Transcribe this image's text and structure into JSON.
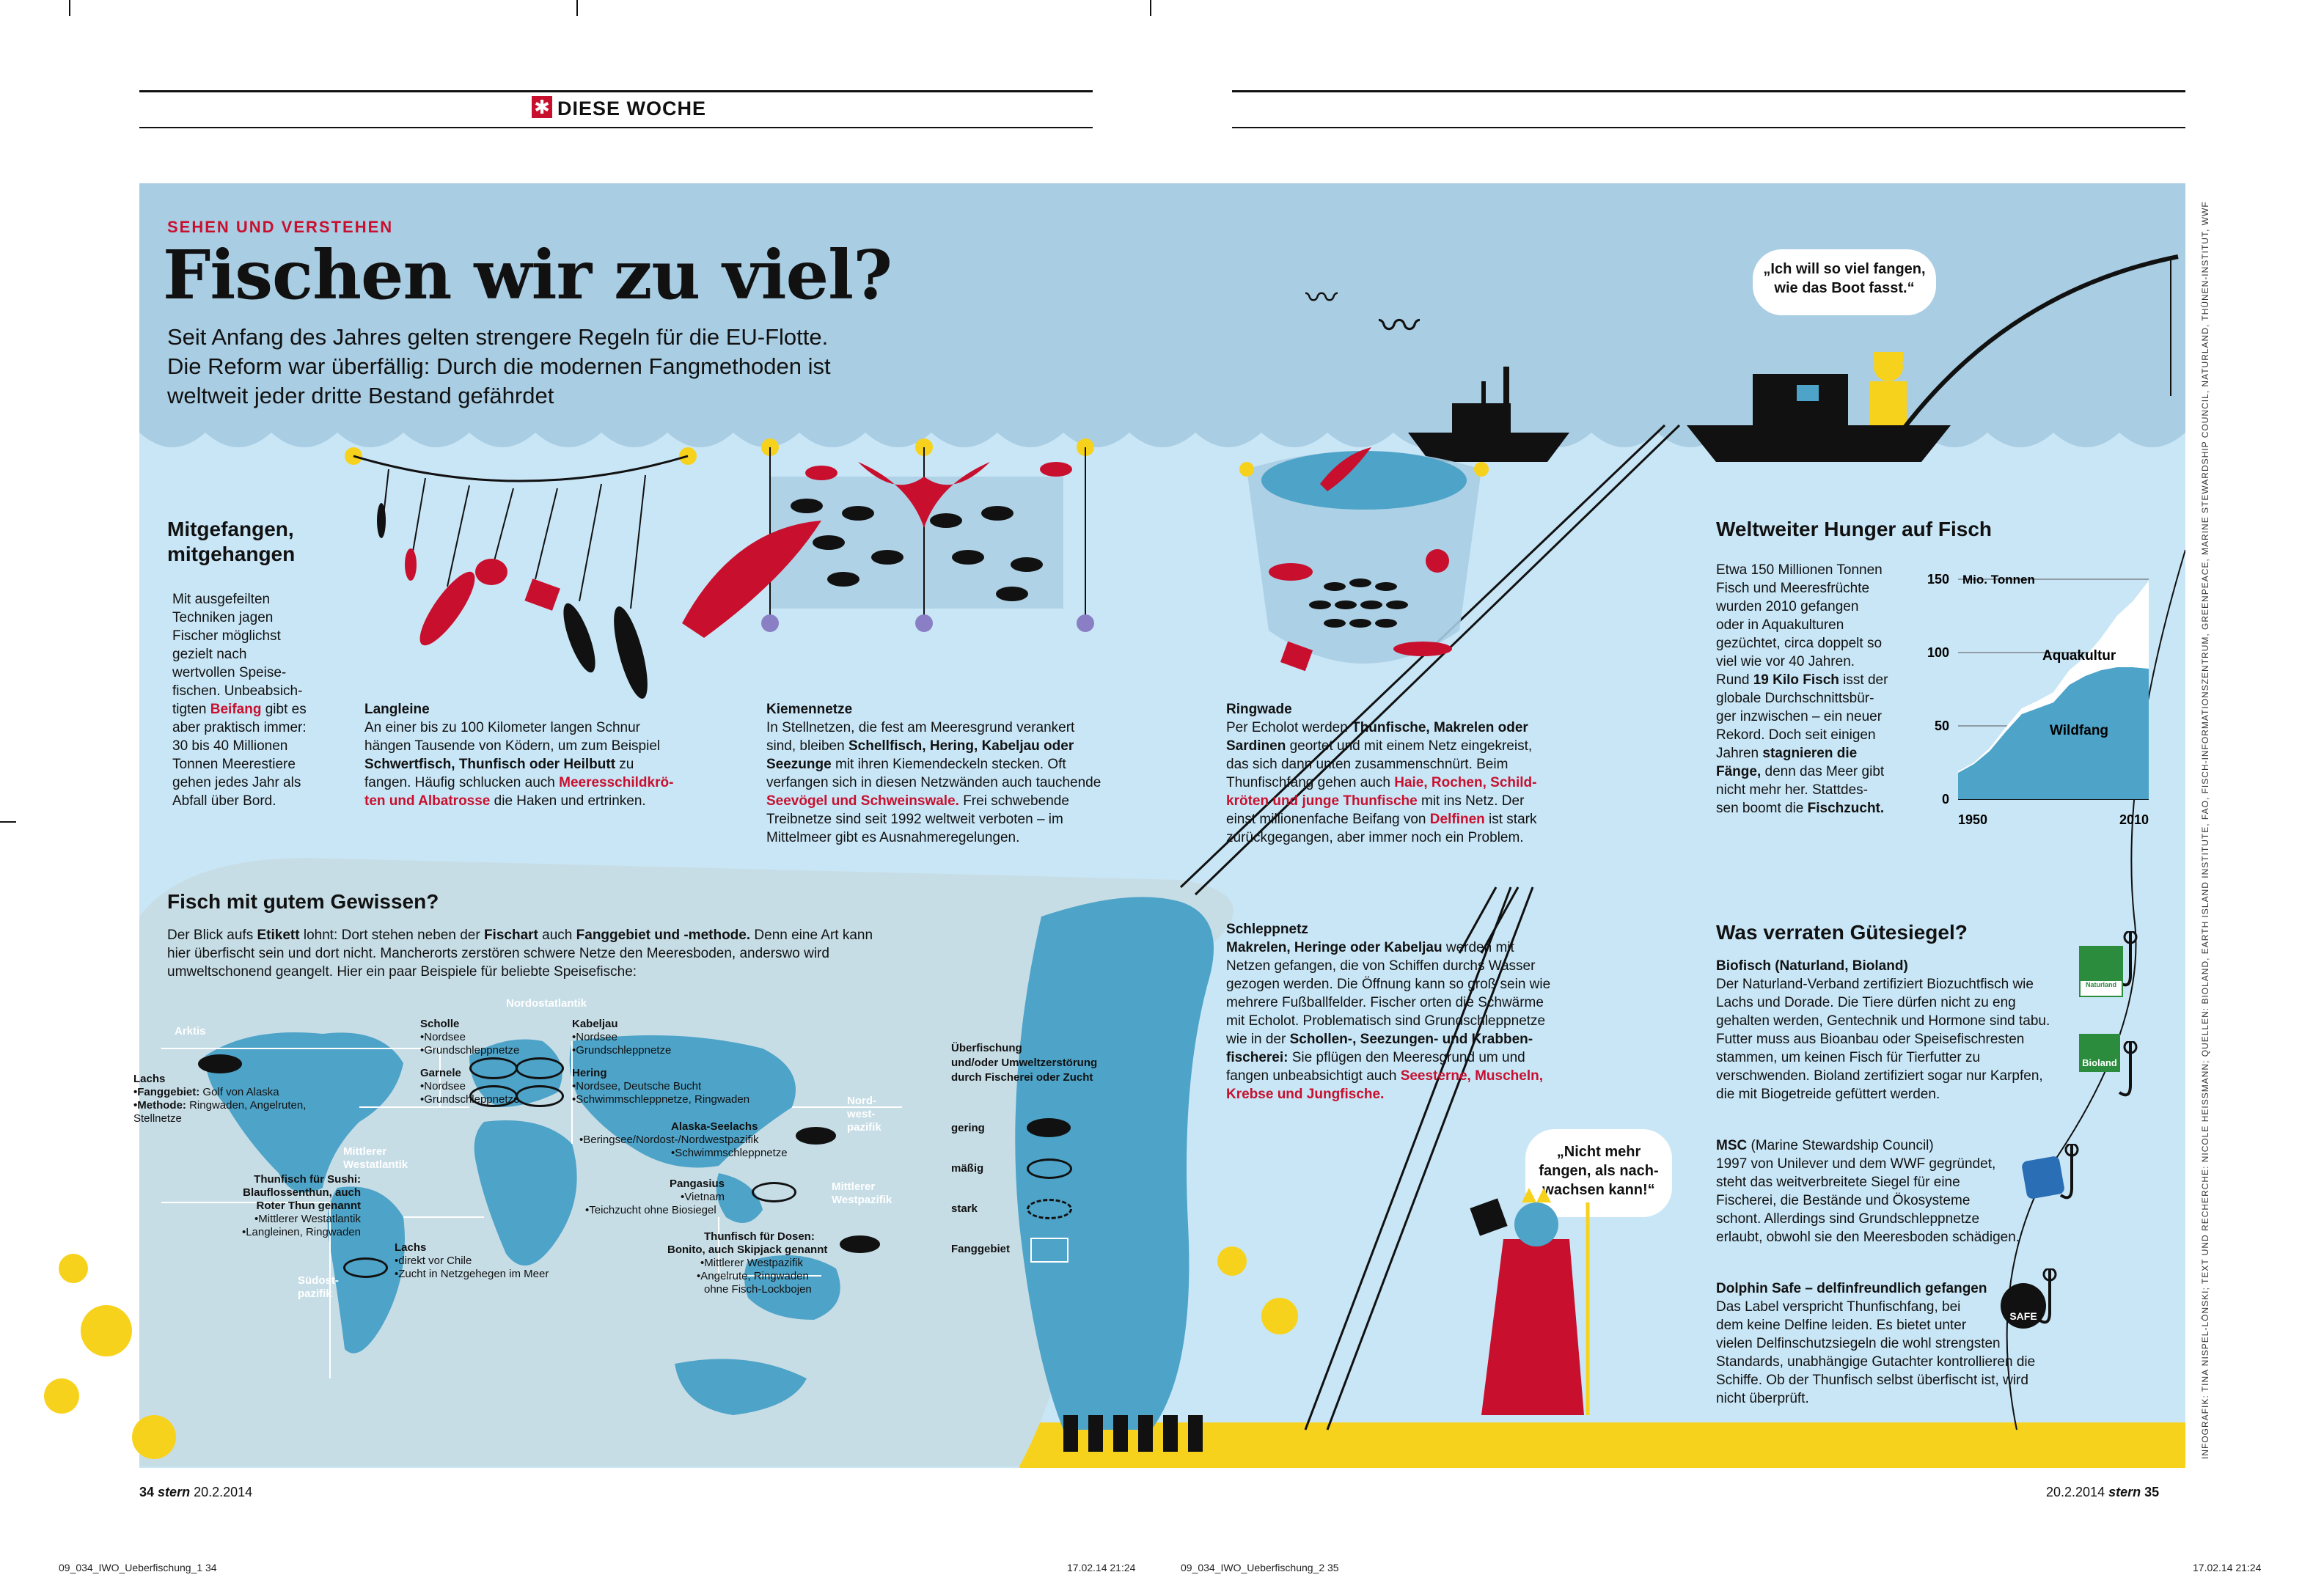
{
  "header": {
    "section": "DIESE WOCHE"
  },
  "kicker": "SEHEN UND VERSTEHEN",
  "title": "Fischen wir zu viel?",
  "intro": [
    "Seit Anfang des Jahres gelten strengere Regeln für die EU-Flotte.",
    "Die Reform war überfällig: Durch die modernen Fangmethoden ist",
    "weltweit jeder dritte Bestand gefährdet"
  ],
  "bubbles": {
    "fisherman": [
      "„Ich will so viel fangen,",
      "wie das Boot fasst.“"
    ],
    "neptune": [
      "„Nicht mehr",
      "fangen, als nach-",
      "wachsen kann!“"
    ]
  },
  "bycatch": {
    "title": [
      "Mitgefangen,",
      "mitgehangen"
    ],
    "text_plain": [
      "Mit ausgefeilten",
      "Techniken jagen",
      "Fischer möglichst",
      "gezielt nach",
      "wertvollen Speise-",
      "fischen. Unbeabsich-"
    ],
    "line_tigten": "tigten ",
    "beifang": "Beifang",
    "line_tigten_rest": " gibt es",
    "text_plain2": [
      "aber praktisch immer:",
      "30 bis 40 Millionen",
      "Tonnen Meerestiere",
      "gehen jedes Jahr als",
      "Abfall über Bord."
    ]
  },
  "langleine": {
    "heading": "Langleine",
    "l1": "An einer bis zu 100 Kilometer langen Schnur",
    "l2": "hängen Tausende von Ködern, um zum Beispiel",
    "l3b": "Schwertfisch, Thunfisch oder Heilbutt",
    "l3": " zu",
    "l4": "fangen. Häufig schlucken auch ",
    "l4r": "Meeresschildkrö-",
    "l5r": "ten und Albatrosse",
    "l5": " die Haken und ertrinken."
  },
  "kiemen": {
    "heading": "Kiemennetze",
    "l1": "In Stellnetzen, die fest am Meeresgrund verankert",
    "l2": "sind, bleiben ",
    "l2b": "Schellfisch, Hering, Kabeljau oder",
    "l3b": "Seezunge",
    "l3": " mit ihren Kiemendeckeln stecken. Oft",
    "l4": "verfangen sich in diesen Netzwänden auch tauchende",
    "l5r": "Seevögel und Schweinswale.",
    "l5": " Frei schwebende",
    "l6": "Treibnetze sind seit 1992 weltweit verboten – im",
    "l7": "Mittelmeer gibt es Ausnahmeregelungen."
  },
  "ringwade": {
    "heading": "Ringwade",
    "l1": "Per Echolot werden ",
    "l1b": "Thunfische, Makrelen oder",
    "l2b": "Sardinen",
    "l2": " geortet und mit einem Netz eingekreist,",
    "l3": "das sich dann unten zusammenschnürt. Beim",
    "l4": "Thunfischfang gehen auch ",
    "l4r": "Haie, Rochen, Schild-",
    "l5r": "kröten und junge Thunfische",
    "l5": " mit ins Netz. Der",
    "l6": "einst millionenfache Beifang von ",
    "l6r": "Delfinen",
    "l6e": " ist stark",
    "l7": "zurückgegangen, aber immer noch ein Problem."
  },
  "schlepp": {
    "heading": "Schleppnetz",
    "l1b": "Makrelen, Heringe oder Kabeljau",
    "l1": " werden mit",
    "l2": "Netzen gefangen, die von Schiffen durchs Wasser",
    "l3": "gezogen werden. Die Öffnung kann so groß sein wie",
    "l4": "mehrere Fußballfelder. Fischer orten die Schwärme",
    "l5": "mit Echolot. Problematisch sind Grundschleppnetze",
    "l6": "wie in der ",
    "l6b": "Schollen-, Seezungen- und Krabben-",
    "l7b": "fischerei:",
    "l7": " Sie pflügen den Meeresgrund um und",
    "l8": "fangen unbeabsichtigt auch ",
    "l8r": "Seesterne, Muscheln,",
    "l9r": "Krebse und Jungfische."
  },
  "hunger": {
    "title": "Weltweiter Hunger auf Fisch",
    "l1": "Etwa 150 Millionen Tonnen",
    "l2": "Fisch und Meeresfrüchte",
    "l3": "wurden 2010 gefangen",
    "l4": "oder in Aquakulturen",
    "l5": "gezüchtet, circa doppelt so",
    "l6": "viel wie vor 40 Jahren.",
    "l7a": "Rund ",
    "l7b": "19 Kilo Fisch",
    "l7c": " isst der",
    "l8": "globale Durchschnittsbür-",
    "l9": "ger inzwischen – ein neuer",
    "l10": "Rekord. Doch seit einigen",
    "l11a": "Jahren ",
    "l11b": "stagnieren die",
    "l12b": "Fänge,",
    "l12": " denn das Meer gibt",
    "l13": "nicht mehr her. Stattdes-",
    "l14a": "sen boomt die ",
    "l14b": "Fischzucht."
  },
  "chart_data": {
    "type": "area",
    "title": "",
    "unit": "Mio. Tonnen",
    "x_labels": [
      "1950",
      "2010"
    ],
    "y_ticks": [
      0,
      50,
      100,
      150
    ],
    "ylim": [
      0,
      150
    ],
    "xlim": [
      1950,
      2010
    ],
    "series": [
      {
        "name": "Wildfang",
        "x": [
          1950,
          1955,
          1960,
          1965,
          1970,
          1975,
          1980,
          1985,
          1990,
          1995,
          2000,
          2005,
          2010
        ],
        "values": [
          18,
          24,
          33,
          46,
          58,
          62,
          66,
          78,
          84,
          88,
          90,
          90,
          89
        ]
      },
      {
        "name": "Aquakultur",
        "x": [
          1950,
          1955,
          1960,
          1965,
          1970,
          1975,
          1980,
          1985,
          1990,
          1995,
          2000,
          2005,
          2010
        ],
        "values": [
          1,
          1,
          2,
          3,
          4,
          5,
          7,
          10,
          13,
          22,
          35,
          45,
          60
        ]
      }
    ]
  },
  "siegel": {
    "title": "Was verraten Gütesiegel?",
    "bio_h": "Biofisch (Naturland, Bioland)",
    "bio": [
      "Der Naturland-Verband zertifiziert Biozuchtfisch wie",
      "Lachs und Dorade. Die Tiere dürfen nicht zu eng",
      "gehalten werden, Gentechnik und Hormone sind tabu.",
      "Futter muss aus Bioanbau oder Speisefischresten",
      "stammen, um keinen Fisch für Tierfutter zu",
      "verschwenden. Bioland zertifiziert sogar nur Karpfen,",
      "die mit Biogetreide gefüttert werden."
    ],
    "msc_h": "MSC",
    "msc_h2": " (Marine Stewardship Council)",
    "msc": [
      "1997 von Unilever und dem WWF gegründet,",
      "steht das weitverbreitete Siegel für eine",
      "Fischerei, die Bestände und Ökosysteme",
      "schont. Allerdings sind Grundschleppnetze",
      "erlaubt, obwohl sie den Meeresboden schädigen."
    ],
    "dol_h": "Dolphin Safe – delfinfreundlich gefangen",
    "dol": [
      "Das Label verspricht Thunfischfang, bei",
      "dem keine Delfine leiden. Es bietet unter",
      "vielen Delfinschutzsiegeln die wohl strengsten",
      "Standards, unabhängige Gutachter kontrollieren die",
      "Schiffe. Ob der Thunfisch selbst überfischt ist, wird",
      "nicht überprüft."
    ],
    "logo_naturland": "Naturland",
    "logo_bioland": "Bioland",
    "logo_safe": "SAFE"
  },
  "gewissen": {
    "title": "Fisch mit gutem Gewissen?",
    "l1a": "Der Blick aufs ",
    "l1b": "Etikett",
    "l1c": " lohnt: Dort stehen neben der ",
    "l1d": "Fischart",
    "l1e": " auch ",
    "l1f": "Fanggebiet und -methode.",
    "l1g": " Denn eine Art kann",
    "l2": "hier überfischt sein und dort nicht. Mancherorts zerstören schwere Netze den Meeresboden, anderswo wird",
    "l3": "umweltschonend geangelt. Hier ein paar Beispiele für beliebte Speisefische:"
  },
  "map": {
    "regions": {
      "arktis": "Arktis",
      "nordostatlantik": "Nordostatlantik",
      "nordwestpazifik": [
        "Nord-",
        "west-",
        "pazifik"
      ],
      "mittlererwestatlantik": [
        "Mittlerer",
        "Westatlantik"
      ],
      "mittlererwestpazifik": [
        "Mittlerer",
        "Westpazifik"
      ],
      "suedostpazifik": [
        "Südost-",
        "pazifik"
      ]
    },
    "lachs": {
      "name": "Lachs",
      "fg_l": "•Fanggebiet:",
      "fg": " Golf von Alaska",
      "me_l": "•Methode:",
      "me": " Ringwaden, Angelruten,",
      "me2": "Stellnetze"
    },
    "scholle": {
      "name": "Scholle",
      "a": "•Nordsee",
      "b": "•Grundschleppnetze"
    },
    "kabeljau": {
      "name": "Kabeljau",
      "a": "•Nordsee",
      "b": "•Grundschleppnetze"
    },
    "garnele": {
      "name": "Garnele",
      "a": "•Nordsee",
      "b": "•Grundschleppnetze"
    },
    "hering": {
      "name": "Hering",
      "a": "•Nordsee, Deutsche Bucht",
      "b": "•Schwimmschleppnetze, Ringwaden"
    },
    "alaska": {
      "name": "Alaska-Seelachs",
      "a": "•Beringsee/Nordost-/Nordwestpazifik",
      "b": "•Schwimmschleppnetze"
    },
    "sushi": {
      "name": [
        "Thunfisch für Sushi:",
        "Blauflossenthun, auch",
        "Roter Thun genannt"
      ],
      "a": "•Mittlerer Westatlantik",
      "b": "•Langleinen, Ringwaden"
    },
    "pangasius": {
      "name": "Pangasius",
      "a": "•Vietnam",
      "b": "•Teichzucht ohne Biosiegel"
    },
    "lachs2": {
      "name": "Lachs",
      "a": "•direkt vor Chile",
      "b": "•Zucht in Netzgehegen im Meer"
    },
    "dose": {
      "name": [
        "Thunfisch für Dosen:",
        "Bonito, auch Skipjack genannt"
      ],
      "a": "•Mittlerer Westpazifik",
      "b": "•Angelrute, Ringwaden",
      "c": "ohne Fisch-Lockbojen"
    }
  },
  "legend": {
    "title": [
      "Überfischung",
      "und/oder Umweltzerstörung",
      "durch Fischerei oder Zucht"
    ],
    "gering": "gering",
    "maessig": "mäßig",
    "stark": "stark",
    "fanggebiet": "Fanggebiet"
  },
  "footer": {
    "left_page": "34",
    "left_mag": "stern",
    "left_date": "20.2.2014",
    "right_date": "20.2.2014",
    "right_mag": "stern",
    "right_page": "35"
  },
  "slug": {
    "a": "09_034_IWO_Ueberfischung_1  34",
    "b": "17.02.14   21:24",
    "c": "09_034_IWO_Ueberfischung_2  35",
    "d": "17.02.14   21:24"
  },
  "credit": "INFOGRAFIK: TINA NISPEL-LÖNSKI; TEXT UND RECHERCHE: NICOLE HEISSMANN; QUELLEN: BIOLAND, EARTH ISLAND INSTITUTE, FAO, FISCH-INFORMATIONSZENTRUM, GREENPEACE, MARINE STEWARDSHIP COUNCIL, NATURLAND, THÜNEN-INSTITUT, WWF",
  "colors": {
    "sky": "#a9cde3",
    "sea": "#c9e6f6",
    "deep": "#4da3c8",
    "red": "#c8102e",
    "sand": "#f7d21d",
    "ink": "#111111"
  }
}
